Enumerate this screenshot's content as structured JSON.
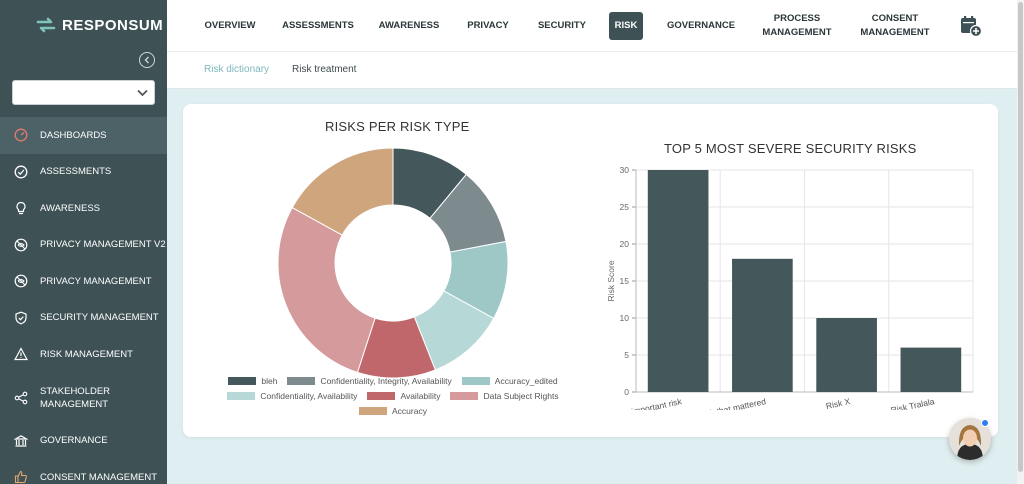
{
  "app": {
    "logo_text": "RESPONSUM"
  },
  "sidebar": {
    "select_value": "",
    "items": [
      {
        "label": "DASHBOARDS",
        "icon": "gauge-icon",
        "active": true
      },
      {
        "label": "ASSESSMENTS",
        "icon": "check-circle-icon"
      },
      {
        "label": "AWARENESS",
        "icon": "lightbulb-icon"
      },
      {
        "label": "PRIVACY MANAGEMENT V2",
        "icon": "eye-slash-icon"
      },
      {
        "label": "PRIVACY MANAGEMENT",
        "icon": "eye-slash-icon"
      },
      {
        "label": "SECURITY MANAGEMENT",
        "icon": "shield-icon"
      },
      {
        "label": "RISK MANAGEMENT",
        "icon": "warning-icon"
      },
      {
        "label": "STAKEHOLDER MANAGEMENT",
        "icon": "share-icon"
      },
      {
        "label": "GOVERNANCE",
        "icon": "bank-icon"
      },
      {
        "label": "CONSENT MANAGEMENT",
        "icon": "thumbs-up-icon"
      }
    ]
  },
  "topnav": {
    "tabs": [
      {
        "label": "OVERVIEW"
      },
      {
        "label": "ASSESSMENTS"
      },
      {
        "label": "AWARENESS"
      },
      {
        "label": "PRIVACY"
      },
      {
        "label": "SECURITY"
      },
      {
        "label": "RISK",
        "active": true
      },
      {
        "label": "GOVERNANCE"
      },
      {
        "label": "PROCESS MANAGEMENT"
      },
      {
        "label": "CONSENT MANAGEMENT"
      }
    ]
  },
  "subtabs": [
    {
      "label": "Risk dictionary",
      "active": true
    },
    {
      "label": "Risk treatment"
    }
  ],
  "colors": {
    "sidebar": "#3e5155",
    "accent": "#7fb8bd",
    "bar": "#44575b"
  },
  "chart_data": [
    {
      "type": "pie",
      "title": "RISKS PER RISK TYPE",
      "donut": true,
      "labels": [
        "bleh",
        "Confidentiality, Integrity, Availability",
        "Accuracy_edited",
        "Confidentiality, Availability",
        "Availability",
        "Data Subject Rights",
        "Accuracy"
      ],
      "values": [
        11,
        11,
        11,
        11,
        11,
        28,
        17
      ],
      "colors": [
        "#44575b",
        "#7d8b8e",
        "#9dc8c6",
        "#b6d8d6",
        "#c0676c",
        "#d49a9c",
        "#cfa57e"
      ],
      "legend": "bottom"
    },
    {
      "type": "bar",
      "title": "TOP 5 MOST SEVERE SECURITY RISKS",
      "categories": [
        "A very important risk",
        "the only risk that mattered",
        "Risk X",
        "Risk Tralala"
      ],
      "values": [
        30,
        18,
        10,
        6
      ],
      "ylabel": "Risk Score",
      "ylim": [
        0,
        30
      ],
      "yticks": [
        0,
        5,
        10,
        15,
        20,
        25,
        30
      ],
      "grid": true
    }
  ]
}
